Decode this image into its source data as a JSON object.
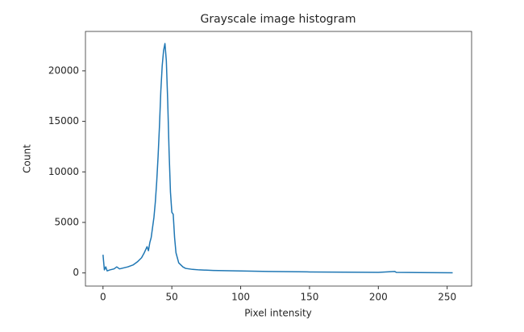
{
  "chart_data": {
    "type": "line",
    "title": "Grayscale image histogram",
    "x_label": "Pixel intensity",
    "y_label": "Count",
    "x": [
      0,
      1,
      2,
      3,
      5,
      8,
      10,
      12,
      15,
      18,
      20,
      22,
      25,
      28,
      30,
      32,
      33,
      34,
      35,
      36,
      37,
      38,
      39,
      40,
      41,
      42,
      43,
      44,
      45,
      46,
      47,
      48,
      49,
      50,
      51,
      52,
      53,
      55,
      58,
      60,
      65,
      70,
      80,
      100,
      120,
      150,
      200,
      212,
      213,
      230,
      254
    ],
    "series": [
      {
        "color": "#1f77b4",
        "values": [
          1800,
          300,
          600,
          200,
          300,
          400,
          600,
          400,
          500,
          600,
          700,
          800,
          1100,
          1500,
          2000,
          2600,
          2200,
          3000,
          3500,
          4500,
          5500,
          7000,
          9000,
          11500,
          14500,
          18000,
          20500,
          22000,
          22700,
          21000,
          17000,
          12000,
          8000,
          6000,
          5800,
          3500,
          2000,
          1000,
          600,
          450,
          350,
          300,
          250,
          200,
          150,
          100,
          60,
          150,
          60,
          40,
          20
        ]
      }
    ],
    "xlim": [
      -12.75,
      267.75
    ],
    "ylim": [
      -1300,
      23900
    ],
    "xticks": [
      0,
      50,
      100,
      150,
      200,
      250
    ],
    "yticks": [
      0,
      5000,
      10000,
      15000,
      20000
    ]
  }
}
